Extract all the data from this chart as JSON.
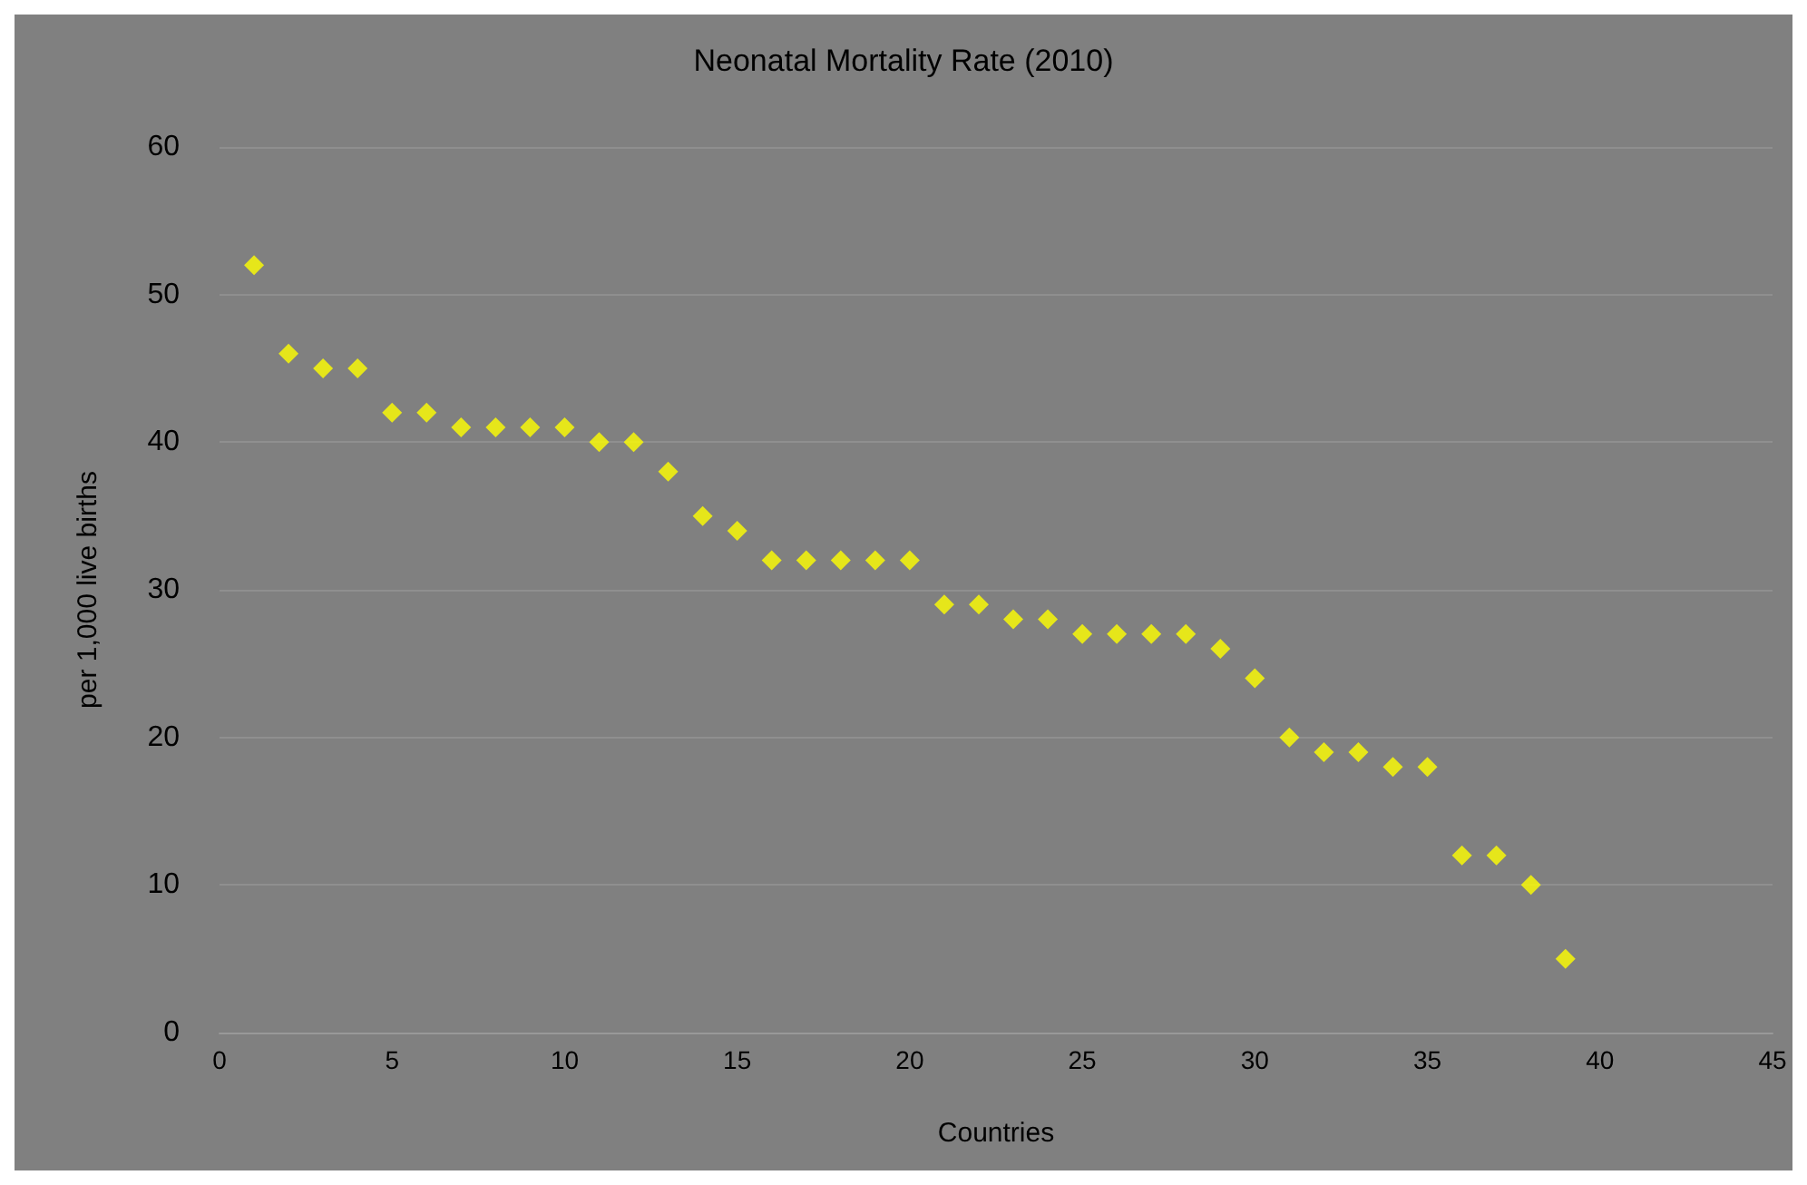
{
  "chart_data": {
    "type": "scatter",
    "title": "Neonatal Mortality Rate (2010)",
    "xlabel": "Countries",
    "ylabel": "per 1,000 live births",
    "x": [
      1,
      2,
      3,
      4,
      5,
      6,
      7,
      8,
      9,
      10,
      11,
      12,
      13,
      14,
      15,
      16,
      17,
      18,
      19,
      20,
      21,
      22,
      23,
      24,
      25,
      26,
      27,
      28,
      29,
      30,
      31,
      32,
      33,
      34,
      35,
      36,
      37,
      38,
      39
    ],
    "series": [
      {
        "color": "#ffff00",
        "values": [
          52,
          46,
          45,
          45,
          42,
          42,
          41,
          41,
          41,
          41,
          40,
          40,
          38,
          35,
          34,
          32,
          32,
          32,
          32,
          32,
          29,
          29,
          28,
          28,
          27,
          27,
          27,
          27,
          26,
          24,
          20,
          19,
          19,
          18,
          18,
          12,
          12,
          10,
          5
        ]
      }
    ],
    "xlim": [
      0,
      45
    ],
    "xticks": [
      0,
      5,
      10,
      15,
      20,
      25,
      30,
      35,
      40,
      45
    ],
    "ylim": [
      0,
      60
    ],
    "yticks": [
      0,
      10,
      20,
      30,
      40,
      50,
      60
    ],
    "grid": "y",
    "marker": "diamond"
  }
}
